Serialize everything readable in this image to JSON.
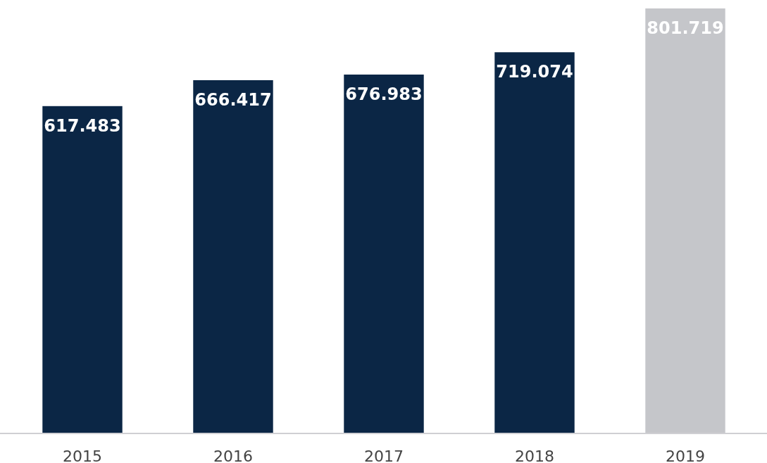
{
  "chart_data": {
    "type": "bar",
    "categories": [
      "2015",
      "2016",
      "2017",
      "2018",
      "2019"
    ],
    "values": [
      617.483,
      666.417,
      676.983,
      719.074,
      801.719
    ],
    "colors": [
      "#0b2645",
      "#0b2645",
      "#0b2645",
      "#0b2645",
      "#c5c6ca"
    ],
    "data_labels": true
  }
}
